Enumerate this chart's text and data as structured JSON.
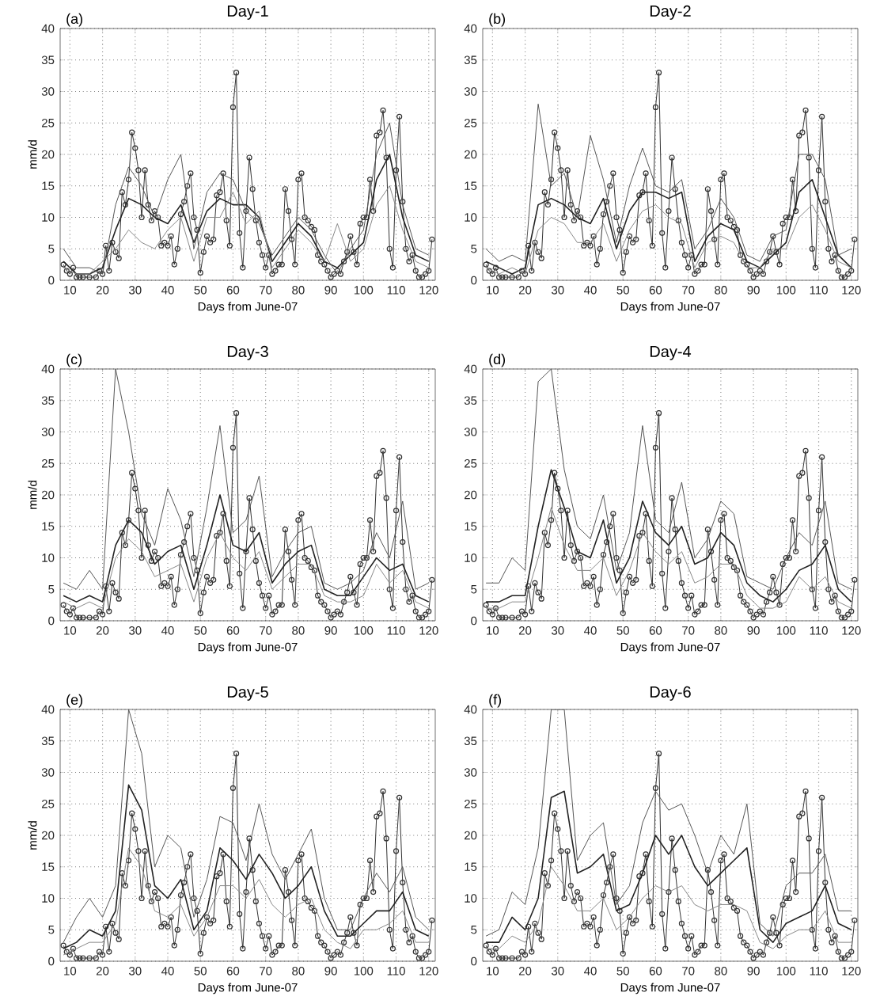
{
  "chart_data": [
    {
      "type": "line",
      "title": "Day-1",
      "annotations": [
        "(a)"
      ],
      "xlabel": "Days from June-07",
      "ylabel": "mm/d",
      "xlim": [
        7,
        122
      ],
      "ylim": [
        0,
        40
      ],
      "xticks": [
        10,
        20,
        30,
        40,
        50,
        60,
        70,
        80,
        90,
        100,
        110,
        120
      ],
      "yticks": [
        0,
        5,
        10,
        15,
        20,
        25,
        30,
        35,
        40
      ],
      "grid": true,
      "line_style": "solid",
      "x": [
        8,
        12,
        16,
        20,
        24,
        28,
        32,
        36,
        40,
        44,
        48,
        52,
        56,
        60,
        64,
        68,
        72,
        76,
        80,
        84,
        88,
        92,
        96,
        100,
        104,
        108,
        112,
        116,
        120
      ],
      "series": [
        {
          "color": "#333333",
          "marker": "circle",
          "x": [
            8,
            9,
            10,
            11,
            12,
            13,
            14,
            16,
            18,
            19,
            20,
            21,
            22,
            23,
            24,
            25,
            26,
            27,
            28,
            29,
            30,
            31,
            32,
            33,
            34,
            35,
            36,
            37,
            38,
            39,
            40,
            41,
            42,
            43,
            44,
            45,
            46,
            47,
            48,
            49,
            50,
            51,
            52,
            53,
            54,
            55,
            56,
            57,
            58,
            59,
            60,
            61,
            62,
            63,
            64,
            65,
            66,
            67,
            68,
            69,
            70,
            71,
            72,
            73,
            74,
            75,
            76,
            77,
            78,
            79,
            80,
            81,
            82,
            83,
            84,
            85,
            86,
            87,
            88,
            89,
            90,
            91,
            92,
            93,
            94,
            95,
            96,
            97,
            98,
            99,
            100,
            101,
            102,
            103,
            104,
            105,
            106,
            107,
            108,
            109,
            110,
            111,
            112,
            113,
            114,
            115,
            116,
            117,
            118,
            119,
            120,
            121
          ],
          "values": [
            2.5,
            1.5,
            1,
            2,
            0.5,
            0.5,
            0.5,
            0.5,
            0.5,
            1.5,
            1,
            5.5,
            1.5,
            6,
            4.5,
            3.5,
            14,
            12,
            16,
            23.5,
            21,
            17.5,
            10,
            17.5,
            12,
            9.5,
            11,
            10,
            5.5,
            6,
            5.5,
            7,
            2.5,
            5,
            10.5,
            12.5,
            15,
            17,
            10,
            8,
            1.2,
            4.5,
            7,
            6,
            6.5,
            13.5,
            14,
            17,
            9.5,
            5.5,
            27.5,
            33,
            7.5,
            2,
            11,
            19.5,
            14.5,
            9.5,
            6,
            4,
            2,
            4,
            1,
            1.5,
            2.5,
            2.5,
            14.5,
            11,
            6.5,
            2.5,
            16,
            17,
            10,
            9.5,
            8.5,
            8,
            4,
            3,
            2.5,
            1.5,
            0.5,
            1,
            1.5,
            1,
            3,
            4.5,
            7,
            4.5,
            2.5,
            9,
            10,
            10,
            16,
            11,
            23,
            23.5,
            27,
            19.5,
            5,
            2,
            17.5,
            26,
            12.5,
            5,
            3,
            4,
            1.5,
            0.5,
            0.5,
            1,
            1.5,
            6.5
          ]
        },
        {
          "color": "#222222",
          "marker": "none",
          "values": [
            3,
            1,
            1,
            2,
            8,
            13,
            12,
            10,
            9,
            12,
            6,
            11,
            13,
            12,
            12,
            10,
            3,
            6,
            9,
            7,
            3,
            2,
            4,
            6,
            16,
            20,
            10,
            4,
            3
          ]
        },
        {
          "color": "#555555",
          "marker": "none",
          "values": [
            5,
            2,
            2,
            1,
            12,
            18,
            15,
            10,
            16,
            20,
            5,
            14,
            17,
            16,
            11,
            9,
            4,
            7,
            10,
            8,
            4,
            1,
            5,
            8,
            20,
            25,
            12,
            5,
            4
          ]
        },
        {
          "color": "#888888",
          "marker": "none",
          "values": [
            2,
            1,
            1,
            3,
            5,
            8,
            6,
            5,
            8,
            10,
            3,
            10,
            10,
            14,
            9,
            11,
            2,
            5,
            8,
            6,
            3,
            9,
            3,
            5,
            12,
            15,
            8,
            3,
            2
          ]
        }
      ]
    },
    {
      "type": "line",
      "title": "Day-2",
      "annotations": [
        "(b)"
      ],
      "xlabel": "Days from June-07",
      "xlim": [
        7,
        122
      ],
      "ylim": [
        0,
        40
      ],
      "xticks": [
        10,
        20,
        30,
        40,
        50,
        60,
        70,
        80,
        90,
        100,
        110,
        120
      ],
      "yticks": [
        0,
        5,
        10,
        15,
        20,
        25,
        30,
        35,
        40
      ],
      "grid": true,
      "line_style": "solid",
      "x": [
        8,
        12,
        16,
        20,
        24,
        28,
        32,
        36,
        40,
        44,
        48,
        52,
        56,
        60,
        64,
        68,
        72,
        76,
        80,
        84,
        88,
        92,
        96,
        100,
        104,
        108,
        112,
        116,
        120
      ],
      "series": [
        {
          "color": "#333333",
          "marker": "circle",
          "x": [
            8,
            9,
            10,
            11,
            12,
            13,
            14,
            16,
            18,
            19,
            20,
            21,
            22,
            23,
            24,
            25,
            26,
            27,
            28,
            29,
            30,
            31,
            32,
            33,
            34,
            35,
            36,
            37,
            38,
            39,
            40,
            41,
            42,
            43,
            44,
            45,
            46,
            47,
            48,
            49,
            50,
            51,
            52,
            53,
            54,
            55,
            56,
            57,
            58,
            59,
            60,
            61,
            62,
            63,
            64,
            65,
            66,
            67,
            68,
            69,
            70,
            71,
            72,
            73,
            74,
            75,
            76,
            77,
            78,
            79,
            80,
            81,
            82,
            83,
            84,
            85,
            86,
            87,
            88,
            89,
            90,
            91,
            92,
            93,
            94,
            95,
            96,
            97,
            98,
            99,
            100,
            101,
            102,
            103,
            104,
            105,
            106,
            107,
            108,
            109,
            110,
            111,
            112,
            113,
            114,
            115,
            116,
            117,
            118,
            119,
            120,
            121
          ],
          "values": [
            2.5,
            1.5,
            1,
            2,
            0.5,
            0.5,
            0.5,
            0.5,
            0.5,
            1.5,
            1,
            5.5,
            1.5,
            6,
            4.5,
            3.5,
            14,
            12,
            16,
            23.5,
            21,
            17.5,
            10,
            17.5,
            12,
            9.5,
            11,
            10,
            5.5,
            6,
            5.5,
            7,
            2.5,
            5,
            10.5,
            12.5,
            15,
            17,
            10,
            8,
            1.2,
            4.5,
            7,
            6,
            6.5,
            13.5,
            14,
            17,
            9.5,
            5.5,
            27.5,
            33,
            7.5,
            2,
            11,
            19.5,
            14.5,
            9.5,
            6,
            4,
            2,
            4,
            1,
            1.5,
            2.5,
            2.5,
            14.5,
            11,
            6.5,
            2.5,
            16,
            17,
            10,
            9.5,
            8.5,
            8,
            4,
            3,
            2.5,
            1.5,
            0.5,
            1,
            1.5,
            1,
            3,
            4.5,
            7,
            4.5,
            2.5,
            9,
            10,
            10,
            16,
            11,
            23,
            23.5,
            27,
            19.5,
            5,
            2,
            17.5,
            26,
            12.5,
            5,
            3,
            4,
            1.5,
            0.5,
            0.5,
            1,
            1.5,
            6.5
          ]
        },
        {
          "color": "#222222",
          "marker": "none",
          "values": [
            3,
            2,
            1,
            2,
            12,
            13,
            12,
            10,
            9,
            13,
            5,
            11,
            14,
            14,
            13,
            14,
            3,
            7,
            9,
            8,
            3,
            2,
            4,
            6,
            14,
            16,
            10,
            4,
            2
          ]
        },
        {
          "color": "#555555",
          "marker": "none",
          "values": [
            5,
            3,
            4,
            3,
            28,
            15,
            17,
            10,
            23,
            16,
            6,
            15,
            21,
            15,
            14,
            16,
            5,
            8,
            13,
            10,
            4,
            3,
            7,
            8,
            20,
            20,
            16,
            4,
            5
          ]
        },
        {
          "color": "#888888",
          "marker": "none",
          "values": [
            2,
            1,
            2,
            1,
            8,
            10,
            9,
            6,
            6,
            9,
            3,
            8,
            11,
            12,
            10,
            9,
            2,
            6,
            7,
            6,
            2,
            2,
            5,
            5,
            10,
            12,
            8,
            3,
            2
          ]
        }
      ]
    },
    {
      "type": "line",
      "title": "Day-3",
      "annotations": [
        "(c)"
      ],
      "xlabel": "Days from June-07",
      "ylabel": "mm/d",
      "xlim": [
        7,
        122
      ],
      "ylim": [
        0,
        40
      ],
      "xticks": [
        10,
        20,
        30,
        40,
        50,
        60,
        70,
        80,
        90,
        100,
        110,
        120
      ],
      "yticks": [
        0,
        5,
        10,
        15,
        20,
        25,
        30,
        35,
        40
      ],
      "grid": true,
      "line_style": "solid",
      "x": [
        8,
        12,
        16,
        20,
        24,
        28,
        32,
        36,
        40,
        44,
        48,
        52,
        56,
        60,
        64,
        68,
        72,
        76,
        80,
        84,
        88,
        92,
        96,
        100,
        104,
        108,
        112,
        116,
        120
      ],
      "series": [
        {
          "color": "#333333",
          "marker": "circle",
          "x": [
            8,
            9,
            10,
            11,
            12,
            13,
            14,
            16,
            18,
            19,
            20,
            21,
            22,
            23,
            24,
            25,
            26,
            27,
            28,
            29,
            30,
            31,
            32,
            33,
            34,
            35,
            36,
            37,
            38,
            39,
            40,
            41,
            42,
            43,
            44,
            45,
            46,
            47,
            48,
            49,
            50,
            51,
            52,
            53,
            54,
            55,
            56,
            57,
            58,
            59,
            60,
            61,
            62,
            63,
            64,
            65,
            66,
            67,
            68,
            69,
            70,
            71,
            72,
            73,
            74,
            75,
            76,
            77,
            78,
            79,
            80,
            81,
            82,
            83,
            84,
            85,
            86,
            87,
            88,
            89,
            90,
            91,
            92,
            93,
            94,
            95,
            96,
            97,
            98,
            99,
            100,
            101,
            102,
            103,
            104,
            105,
            106,
            107,
            108,
            109,
            110,
            111,
            112,
            113,
            114,
            115,
            116,
            117,
            118,
            119,
            120,
            121
          ],
          "values": [
            2.5,
            1.5,
            1,
            2,
            0.5,
            0.5,
            0.5,
            0.5,
            0.5,
            1.5,
            1,
            5.5,
            1.5,
            6,
            4.5,
            3.5,
            14,
            12,
            16,
            23.5,
            21,
            17.5,
            10,
            17.5,
            12,
            9.5,
            11,
            10,
            5.5,
            6,
            5.5,
            7,
            2.5,
            5,
            10.5,
            12.5,
            15,
            17,
            10,
            8,
            1.2,
            4.5,
            7,
            6,
            6.5,
            13.5,
            14,
            17,
            9.5,
            5.5,
            27.5,
            33,
            7.5,
            2,
            11,
            19.5,
            14.5,
            9.5,
            6,
            4,
            2,
            4,
            1,
            1.5,
            2.5,
            2.5,
            14.5,
            11,
            6.5,
            2.5,
            16,
            17,
            10,
            9.5,
            8.5,
            8,
            4,
            3,
            2.5,
            1.5,
            0.5,
            1,
            1.5,
            1,
            3,
            4.5,
            7,
            4.5,
            2.5,
            9,
            10,
            10,
            16,
            11,
            23,
            23.5,
            27,
            19.5,
            5,
            2,
            17.5,
            26,
            12.5,
            5,
            3,
            4,
            1.5,
            0.5,
            0.5,
            1,
            1.5,
            6.5
          ]
        },
        {
          "color": "#222222",
          "marker": "none",
          "values": [
            4,
            3,
            4,
            3,
            12,
            16,
            14,
            9,
            11,
            12,
            5,
            12,
            20,
            12,
            11,
            14,
            6,
            9,
            11,
            12,
            5,
            4,
            4,
            7,
            10,
            8,
            9,
            4,
            3
          ]
        },
        {
          "color": "#555555",
          "marker": "none",
          "values": [
            6,
            5,
            8,
            5,
            40,
            30,
            17,
            12,
            21,
            16,
            7,
            18,
            31,
            14,
            16,
            23,
            7,
            11,
            14,
            15,
            6,
            5,
            6,
            8,
            14,
            10,
            19,
            5,
            6
          ]
        },
        {
          "color": "#888888",
          "marker": "none",
          "values": [
            3,
            2,
            3,
            2,
            10,
            13,
            11,
            7,
            8,
            9,
            3,
            10,
            14,
            10,
            8,
            11,
            5,
            7,
            9,
            9,
            4,
            3,
            3,
            4,
            9,
            6,
            8,
            3,
            2
          ]
        }
      ]
    },
    {
      "type": "line",
      "title": "Day-4",
      "annotations": [
        "(d)"
      ],
      "xlabel": "Days from June-07",
      "xlim": [
        7,
        122
      ],
      "ylim": [
        0,
        40
      ],
      "xticks": [
        10,
        20,
        30,
        40,
        50,
        60,
        70,
        80,
        90,
        100,
        110,
        120
      ],
      "yticks": [
        0,
        5,
        10,
        15,
        20,
        25,
        30,
        35,
        40
      ],
      "grid": true,
      "line_style": "solid",
      "x": [
        8,
        12,
        16,
        20,
        24,
        28,
        32,
        36,
        40,
        44,
        48,
        52,
        56,
        60,
        64,
        68,
        72,
        76,
        80,
        84,
        88,
        92,
        96,
        100,
        104,
        108,
        112,
        116,
        120
      ],
      "series": [
        {
          "color": "#333333",
          "marker": "circle",
          "x": [
            8,
            9,
            10,
            11,
            12,
            13,
            14,
            16,
            18,
            19,
            20,
            21,
            22,
            23,
            24,
            25,
            26,
            27,
            28,
            29,
            30,
            31,
            32,
            33,
            34,
            35,
            36,
            37,
            38,
            39,
            40,
            41,
            42,
            43,
            44,
            45,
            46,
            47,
            48,
            49,
            50,
            51,
            52,
            53,
            54,
            55,
            56,
            57,
            58,
            59,
            60,
            61,
            62,
            63,
            64,
            65,
            66,
            67,
            68,
            69,
            70,
            71,
            72,
            73,
            74,
            75,
            76,
            77,
            78,
            79,
            80,
            81,
            82,
            83,
            84,
            85,
            86,
            87,
            88,
            89,
            90,
            91,
            92,
            93,
            94,
            95,
            96,
            97,
            98,
            99,
            100,
            101,
            102,
            103,
            104,
            105,
            106,
            107,
            108,
            109,
            110,
            111,
            112,
            113,
            114,
            115,
            116,
            117,
            118,
            119,
            120,
            121
          ],
          "values": [
            2.5,
            1.5,
            1,
            2,
            0.5,
            0.5,
            0.5,
            0.5,
            0.5,
            1.5,
            1,
            5.5,
            1.5,
            6,
            4.5,
            3.5,
            14,
            12,
            16,
            23.5,
            21,
            17.5,
            10,
            17.5,
            12,
            9.5,
            11,
            10,
            5.5,
            6,
            5.5,
            7,
            2.5,
            5,
            10.5,
            12.5,
            15,
            17,
            10,
            8,
            1.2,
            4.5,
            7,
            6,
            6.5,
            13.5,
            14,
            17,
            9.5,
            5.5,
            27.5,
            33,
            7.5,
            2,
            11,
            19.5,
            14.5,
            9.5,
            6,
            4,
            2,
            4,
            1,
            1.5,
            2.5,
            2.5,
            14.5,
            11,
            6.5,
            2.5,
            16,
            17,
            10,
            9.5,
            8.5,
            8,
            4,
            3,
            2.5,
            1.5,
            0.5,
            1,
            1.5,
            1,
            3,
            4.5,
            7,
            4.5,
            2.5,
            9,
            10,
            10,
            16,
            11,
            23,
            23.5,
            27,
            19.5,
            5,
            2,
            17.5,
            26,
            12.5,
            5,
            3,
            4,
            1.5,
            0.5,
            0.5,
            1,
            1.5,
            6.5
          ]
        },
        {
          "color": "#222222",
          "marker": "none",
          "values": [
            3,
            3,
            4,
            4,
            15,
            24,
            18,
            11,
            10,
            16,
            6,
            10,
            19,
            14,
            12,
            15,
            9,
            10,
            14,
            12,
            6,
            4,
            3,
            5,
            8,
            9,
            12,
            5,
            3
          ]
        },
        {
          "color": "#555555",
          "marker": "none",
          "values": [
            6,
            6,
            10,
            8,
            38,
            40,
            24,
            15,
            13,
            20,
            8,
            14,
            31,
            16,
            14,
            22,
            10,
            13,
            19,
            17,
            7,
            6,
            5,
            10,
            14,
            12,
            19,
            6,
            5
          ]
        },
        {
          "color": "#888888",
          "marker": "none",
          "values": [
            2,
            2,
            3,
            3,
            10,
            18,
            12,
            8,
            8,
            10,
            4,
            8,
            14,
            11,
            9,
            11,
            6,
            7,
            9,
            9,
            4,
            2,
            2,
            3,
            7,
            5,
            7,
            3,
            2
          ]
        }
      ]
    },
    {
      "type": "line",
      "title": "Day-5",
      "annotations": [
        "(e)"
      ],
      "xlabel": "Days from June-07",
      "ylabel": "mm/d",
      "xlim": [
        7,
        122
      ],
      "ylim": [
        0,
        40
      ],
      "xticks": [
        10,
        20,
        30,
        40,
        50,
        60,
        70,
        80,
        90,
        100,
        110,
        120
      ],
      "yticks": [
        0,
        5,
        10,
        15,
        20,
        25,
        30,
        35,
        40
      ],
      "grid": true,
      "line_style": "solid",
      "x": [
        8,
        12,
        16,
        20,
        24,
        28,
        32,
        36,
        40,
        44,
        48,
        52,
        56,
        60,
        64,
        68,
        72,
        76,
        80,
        84,
        88,
        92,
        96,
        100,
        104,
        108,
        112,
        116,
        120
      ],
      "series": [
        {
          "color": "#333333",
          "marker": "circle",
          "x": [
            8,
            9,
            10,
            11,
            12,
            13,
            14,
            16,
            18,
            19,
            20,
            21,
            22,
            23,
            24,
            25,
            26,
            27,
            28,
            29,
            30,
            31,
            32,
            33,
            34,
            35,
            36,
            37,
            38,
            39,
            40,
            41,
            42,
            43,
            44,
            45,
            46,
            47,
            48,
            49,
            50,
            51,
            52,
            53,
            54,
            55,
            56,
            57,
            58,
            59,
            60,
            61,
            62,
            63,
            64,
            65,
            66,
            67,
            68,
            69,
            70,
            71,
            72,
            73,
            74,
            75,
            76,
            77,
            78,
            79,
            80,
            81,
            82,
            83,
            84,
            85,
            86,
            87,
            88,
            89,
            90,
            91,
            92,
            93,
            94,
            95,
            96,
            97,
            98,
            99,
            100,
            101,
            102,
            103,
            104,
            105,
            106,
            107,
            108,
            109,
            110,
            111,
            112,
            113,
            114,
            115,
            116,
            117,
            118,
            119,
            120,
            121
          ],
          "values": [
            2.5,
            1.5,
            1,
            2,
            0.5,
            0.5,
            0.5,
            0.5,
            0.5,
            1.5,
            1,
            5.5,
            1.5,
            6,
            4.5,
            3.5,
            14,
            12,
            16,
            23.5,
            21,
            17.5,
            10,
            17.5,
            12,
            9.5,
            11,
            10,
            5.5,
            6,
            5.5,
            7,
            2.5,
            5,
            10.5,
            12.5,
            15,
            17,
            10,
            8,
            1.2,
            4.5,
            7,
            6,
            6.5,
            13.5,
            14,
            17,
            9.5,
            5.5,
            27.5,
            33,
            7.5,
            2,
            11,
            19.5,
            14.5,
            9.5,
            6,
            4,
            2,
            4,
            1,
            1.5,
            2.5,
            2.5,
            14.5,
            11,
            6.5,
            2.5,
            16,
            17,
            10,
            9.5,
            8.5,
            8,
            4,
            3,
            2.5,
            1.5,
            0.5,
            1,
            1.5,
            1,
            3,
            4.5,
            7,
            4.5,
            2.5,
            9,
            10,
            10,
            16,
            11,
            23,
            23.5,
            27,
            19.5,
            5,
            2,
            17.5,
            26,
            12.5,
            5,
            3,
            4,
            1.5,
            0.5,
            0.5,
            1,
            1.5,
            6.5
          ]
        },
        {
          "color": "#222222",
          "marker": "none",
          "values": [
            2,
            3,
            5,
            4,
            8,
            28,
            24,
            12,
            10,
            13,
            5,
            8,
            18,
            16,
            13,
            17,
            14,
            10,
            12,
            15,
            8,
            4,
            4,
            6,
            8,
            8,
            11,
            5,
            4
          ]
        },
        {
          "color": "#555555",
          "marker": "none",
          "values": [
            3,
            7,
            10,
            7,
            12,
            40,
            33,
            15,
            20,
            18,
            7,
            13,
            23,
            22,
            16,
            25,
            17,
            13,
            17,
            21,
            10,
            5,
            5,
            10,
            14,
            11,
            15,
            7,
            5
          ]
        },
        {
          "color": "#888888",
          "marker": "none",
          "values": [
            1,
            2,
            3,
            3,
            6,
            18,
            15,
            8,
            7,
            9,
            4,
            7,
            12,
            12,
            10,
            13,
            9,
            7,
            9,
            10,
            5,
            3,
            2,
            5,
            5,
            6,
            8,
            3,
            3
          ]
        }
      ]
    },
    {
      "type": "line",
      "title": "Day-6",
      "annotations": [
        "(f)"
      ],
      "xlabel": "Days from June-07",
      "xlim": [
        7,
        122
      ],
      "ylim": [
        0,
        40
      ],
      "xticks": [
        10,
        20,
        30,
        40,
        50,
        60,
        70,
        80,
        90,
        100,
        110,
        120
      ],
      "yticks": [
        0,
        5,
        10,
        15,
        20,
        25,
        30,
        35,
        40
      ],
      "grid": true,
      "line_style": "solid",
      "x": [
        8,
        12,
        16,
        20,
        24,
        28,
        32,
        36,
        40,
        44,
        48,
        52,
        56,
        60,
        64,
        68,
        72,
        76,
        80,
        84,
        88,
        92,
        96,
        100,
        104,
        108,
        112,
        116,
        120
      ],
      "series": [
        {
          "color": "#333333",
          "marker": "circle",
          "x": [
            8,
            9,
            10,
            11,
            12,
            13,
            14,
            16,
            18,
            19,
            20,
            21,
            22,
            23,
            24,
            25,
            26,
            27,
            28,
            29,
            30,
            31,
            32,
            33,
            34,
            35,
            36,
            37,
            38,
            39,
            40,
            41,
            42,
            43,
            44,
            45,
            46,
            47,
            48,
            49,
            50,
            51,
            52,
            53,
            54,
            55,
            56,
            57,
            58,
            59,
            60,
            61,
            62,
            63,
            64,
            65,
            66,
            67,
            68,
            69,
            70,
            71,
            72,
            73,
            74,
            75,
            76,
            77,
            78,
            79,
            80,
            81,
            82,
            83,
            84,
            85,
            86,
            87,
            88,
            89,
            90,
            91,
            92,
            93,
            94,
            95,
            96,
            97,
            98,
            99,
            100,
            101,
            102,
            103,
            104,
            105,
            106,
            107,
            108,
            109,
            110,
            111,
            112,
            113,
            114,
            115,
            116,
            117,
            118,
            119,
            120,
            121
          ],
          "values": [
            2.5,
            1.5,
            1,
            2,
            0.5,
            0.5,
            0.5,
            0.5,
            0.5,
            1.5,
            1,
            5.5,
            1.5,
            6,
            4.5,
            3.5,
            14,
            12,
            16,
            23.5,
            21,
            17.5,
            10,
            17.5,
            12,
            9.5,
            11,
            10,
            5.5,
            6,
            5.5,
            7,
            2.5,
            5,
            10.5,
            12.5,
            15,
            17,
            10,
            8,
            1.2,
            4.5,
            7,
            6,
            6.5,
            13.5,
            14,
            17,
            9.5,
            5.5,
            27.5,
            33,
            7.5,
            2,
            11,
            19.5,
            14.5,
            9.5,
            6,
            4,
            2,
            4,
            1,
            1.5,
            2.5,
            2.5,
            14.5,
            11,
            6.5,
            2.5,
            16,
            17,
            10,
            9.5,
            8.5,
            8,
            4,
            3,
            2.5,
            1.5,
            0.5,
            1,
            1.5,
            1,
            3,
            4.5,
            7,
            4.5,
            2.5,
            9,
            10,
            10,
            16,
            11,
            23,
            23.5,
            27,
            19.5,
            5,
            2,
            17.5,
            26,
            12.5,
            5,
            3,
            4,
            1.5,
            0.5,
            0.5,
            1,
            1.5,
            6.5
          ]
        },
        {
          "color": "#222222",
          "marker": "none",
          "values": [
            3,
            3,
            7,
            5,
            10,
            26,
            27,
            14,
            15,
            17,
            8,
            9,
            14,
            20,
            17,
            20,
            15,
            12,
            14,
            16,
            18,
            5,
            3,
            6,
            7,
            8,
            12,
            6,
            5
          ]
        },
        {
          "color": "#555555",
          "marker": "none",
          "values": [
            4,
            5,
            11,
            9,
            18,
            40,
            40,
            16,
            20,
            22,
            9,
            12,
            22,
            27,
            24,
            25,
            20,
            14,
            20,
            17,
            25,
            6,
            4,
            12,
            14,
            14,
            17,
            8,
            8
          ]
        },
        {
          "color": "#888888",
          "marker": "none",
          "values": [
            2,
            2,
            4,
            3,
            6,
            15,
            12,
            8,
            8,
            10,
            5,
            7,
            10,
            12,
            11,
            12,
            9,
            8,
            9,
            9,
            8,
            3,
            2,
            4,
            5,
            5,
            8,
            3,
            3
          ]
        }
      ]
    }
  ]
}
